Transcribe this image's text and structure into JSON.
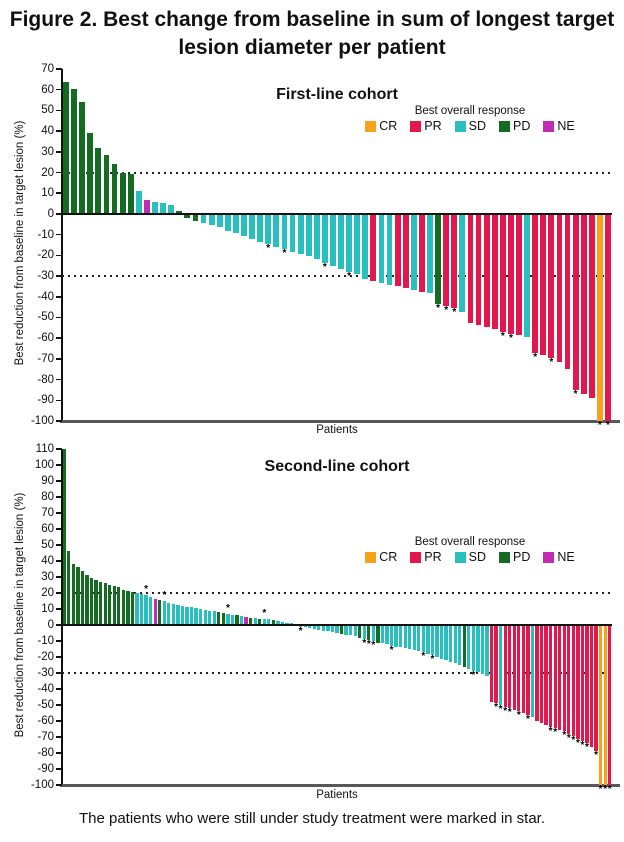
{
  "title": "Figure 2. Best change from baseline in sum of longest target lesion diameter per patient",
  "footnote": "The patients who were still under study treatment were marked in star.",
  "colors": {
    "CR": "#f9a11b",
    "PR": "#e2174d",
    "SD": "#2abfbf",
    "PD": "#156b21",
    "NE": "#c22bb4",
    "axis": "#111111",
    "baseline_axis": "#58585a"
  },
  "legend": {
    "title": "Best overall response",
    "entries": [
      "CR",
      "PR",
      "SD",
      "PD",
      "NE"
    ]
  },
  "bars_format": [
    "value_percent",
    "best_overall_response",
    "still_on_treatment_star"
  ],
  "chart_data": [
    {
      "type": "bar",
      "title": "First-line cohort",
      "xlabel": "Patients",
      "ylabel": "Best reduction from baseline in target lesion (%)",
      "ylim": [
        -100,
        70
      ],
      "ytick_step": 10,
      "grid": false,
      "legend_position": "upper right",
      "reference_lines": [
        20,
        -30
      ],
      "bars": [
        [
          63.5,
          "PD",
          0
        ],
        [
          60.5,
          "PD",
          0
        ],
        [
          54,
          "PD",
          0
        ],
        [
          39,
          "PD",
          0
        ],
        [
          32,
          "PD",
          0
        ],
        [
          28.5,
          "PD",
          0
        ],
        [
          24,
          "PD",
          0
        ],
        [
          20,
          "PD",
          0
        ],
        [
          19.5,
          "PD",
          0
        ],
        [
          11,
          "SD",
          0
        ],
        [
          6.5,
          "NE",
          0
        ],
        [
          6,
          "SD",
          0
        ],
        [
          5.5,
          "SD",
          0
        ],
        [
          4.5,
          "SD",
          0
        ],
        [
          1.5,
          "PD",
          0
        ],
        [
          -2,
          "PD",
          0
        ],
        [
          -3.5,
          "PD",
          0
        ],
        [
          -4.5,
          "SD",
          0
        ],
        [
          -5.5,
          "SD",
          0
        ],
        [
          -6.5,
          "SD",
          0
        ],
        [
          -8,
          "SD",
          0
        ],
        [
          -9,
          "SD",
          0
        ],
        [
          -10.5,
          "SD",
          0
        ],
        [
          -12,
          "SD",
          0
        ],
        [
          -13.5,
          "SD",
          0
        ],
        [
          -14.5,
          "SD",
          1
        ],
        [
          -16,
          "SD",
          0
        ],
        [
          -17,
          "SD",
          1
        ],
        [
          -18.5,
          "SD",
          0
        ],
        [
          -19.5,
          "SD",
          0
        ],
        [
          -20.5,
          "SD",
          0
        ],
        [
          -22,
          "SD",
          0
        ],
        [
          -23.5,
          "SD",
          1
        ],
        [
          -25,
          "SD",
          0
        ],
        [
          -26.5,
          "SD",
          0
        ],
        [
          -28,
          "SD",
          1
        ],
        [
          -29,
          "SD",
          0
        ],
        [
          -31.5,
          "SD",
          0
        ],
        [
          -32.5,
          "PR",
          0
        ],
        [
          -33.5,
          "SD",
          0
        ],
        [
          -34.5,
          "SD",
          0
        ],
        [
          -35,
          "PR",
          0
        ],
        [
          -36,
          "PR",
          0
        ],
        [
          -36.5,
          "SD",
          0
        ],
        [
          -37.5,
          "PR",
          0
        ],
        [
          -38,
          "SD",
          0
        ],
        [
          -43.5,
          "PD",
          1
        ],
        [
          -44.5,
          "PR",
          1
        ],
        [
          -45.5,
          "PR",
          1
        ],
        [
          -47.5,
          "SD",
          0
        ],
        [
          -52.5,
          "PR",
          0
        ],
        [
          -53.5,
          "PR",
          0
        ],
        [
          -54.5,
          "PR",
          0
        ],
        [
          -55.5,
          "PR",
          0
        ],
        [
          -57,
          "PR",
          1
        ],
        [
          -58,
          "PR",
          1
        ],
        [
          -58.5,
          "PR",
          0
        ],
        [
          -59.5,
          "SD",
          0
        ],
        [
          -67,
          "PR",
          1
        ],
        [
          -68,
          "PR",
          0
        ],
        [
          -69.5,
          "PR",
          1
        ],
        [
          -71.5,
          "PR",
          0
        ],
        [
          -75,
          "PR",
          0
        ],
        [
          -85,
          "PR",
          1
        ],
        [
          -87,
          "PR",
          0
        ],
        [
          -89,
          "PR",
          0
        ],
        [
          -100,
          "CR",
          1
        ],
        [
          -100,
          "PR",
          1
        ]
      ]
    },
    {
      "type": "bar",
      "title": "Second-line cohort",
      "xlabel": "Patients",
      "ylabel": "Best reduction from baseline in target lesion (%)",
      "ylim": [
        -100,
        110
      ],
      "ytick_step": 10,
      "grid": false,
      "legend_position": "upper right",
      "reference_lines": [
        20,
        -30
      ],
      "bars": [
        [
          110,
          "PD",
          0
        ],
        [
          46,
          "PD",
          0
        ],
        [
          38,
          "PD",
          0
        ],
        [
          36,
          "PD",
          0
        ],
        [
          34,
          "PD",
          0
        ],
        [
          31,
          "PD",
          0
        ],
        [
          29.5,
          "PD",
          0
        ],
        [
          28,
          "PD",
          0
        ],
        [
          27,
          "PD",
          0
        ],
        [
          26,
          "PD",
          0
        ],
        [
          25,
          "PD",
          0
        ],
        [
          24.5,
          "PD",
          0
        ],
        [
          23.5,
          "PD",
          0
        ],
        [
          22,
          "PD",
          0
        ],
        [
          21,
          "PD",
          0
        ],
        [
          20.5,
          "PD",
          0
        ],
        [
          20,
          "SD",
          0
        ],
        [
          19.5,
          "SD",
          0
        ],
        [
          18.5,
          "SD",
          1
        ],
        [
          17.5,
          "SD",
          0
        ],
        [
          16.5,
          "NE",
          0
        ],
        [
          15.5,
          "PD",
          0
        ],
        [
          15,
          "SD",
          1
        ],
        [
          14,
          "SD",
          0
        ],
        [
          13,
          "SD",
          0
        ],
        [
          12.5,
          "SD",
          0
        ],
        [
          12,
          "SD",
          0
        ],
        [
          11.5,
          "SD",
          0
        ],
        [
          11,
          "SD",
          0
        ],
        [
          10.5,
          "SD",
          0
        ],
        [
          10,
          "SD",
          0
        ],
        [
          9.5,
          "SD",
          0
        ],
        [
          9,
          "SD",
          0
        ],
        [
          8.5,
          "SD",
          0
        ],
        [
          8,
          "PD",
          0
        ],
        [
          7.5,
          "PD",
          0
        ],
        [
          7,
          "SD",
          1
        ],
        [
          6.5,
          "SD",
          0
        ],
        [
          6,
          "PD",
          0
        ],
        [
          5.5,
          "SD",
          0
        ],
        [
          5,
          "NE",
          0
        ],
        [
          4.5,
          "PD",
          0
        ],
        [
          4.5,
          "SD",
          0
        ],
        [
          4,
          "PD",
          0
        ],
        [
          4,
          "SD",
          1
        ],
        [
          3.5,
          "SD",
          0
        ],
        [
          3,
          "PD",
          0
        ],
        [
          2.5,
          "SD",
          0
        ],
        [
          2,
          "SD",
          0
        ],
        [
          1.5,
          "SD",
          0
        ],
        [
          1,
          "SD",
          0
        ],
        [
          0.5,
          "SD",
          0
        ],
        [
          -1,
          "SD",
          1
        ],
        [
          -1.5,
          "SD",
          0
        ],
        [
          -2,
          "SD",
          0
        ],
        [
          -2.5,
          "SD",
          0
        ],
        [
          -3,
          "SD",
          0
        ],
        [
          -3.5,
          "SD",
          0
        ],
        [
          -4,
          "SD",
          0
        ],
        [
          -4.5,
          "SD",
          0
        ],
        [
          -5,
          "SD",
          0
        ],
        [
          -5.5,
          "PD",
          0
        ],
        [
          -6,
          "SD",
          0
        ],
        [
          -6.5,
          "SD",
          0
        ],
        [
          -7,
          "SD",
          0
        ],
        [
          -8,
          "PD",
          0
        ],
        [
          -8.5,
          "SD",
          1
        ],
        [
          -9.5,
          "PD",
          1
        ],
        [
          -10,
          "SD",
          1
        ],
        [
          -11,
          "PD",
          0
        ],
        [
          -11.5,
          "SD",
          0
        ],
        [
          -12,
          "SD",
          0
        ],
        [
          -13,
          "SD",
          1
        ],
        [
          -13.5,
          "SD",
          0
        ],
        [
          -14,
          "SD",
          0
        ],
        [
          -14.5,
          "SD",
          0
        ],
        [
          -15,
          "SD",
          0
        ],
        [
          -15.5,
          "SD",
          0
        ],
        [
          -16,
          "SD",
          0
        ],
        [
          -17,
          "SD",
          1
        ],
        [
          -18,
          "SD",
          0
        ],
        [
          -19,
          "SD",
          1
        ],
        [
          -20,
          "SD",
          0
        ],
        [
          -21,
          "SD",
          0
        ],
        [
          -22,
          "SD",
          0
        ],
        [
          -23,
          "SD",
          0
        ],
        [
          -24,
          "SD",
          0
        ],
        [
          -25,
          "SD",
          0
        ],
        [
          -26.5,
          "PD",
          0
        ],
        [
          -27.5,
          "SD",
          0
        ],
        [
          -28.5,
          "SD",
          1
        ],
        [
          -29.5,
          "SD",
          0
        ],
        [
          -30.5,
          "SD",
          0
        ],
        [
          -32,
          "SD",
          0
        ],
        [
          -48,
          "PR",
          0
        ],
        [
          -49,
          "PR",
          1
        ],
        [
          -50,
          "SD",
          1
        ],
        [
          -51,
          "PR",
          1
        ],
        [
          -52,
          "PR",
          1
        ],
        [
          -53,
          "PR",
          0
        ],
        [
          -54,
          "PR",
          1
        ],
        [
          -55,
          "PR",
          0
        ],
        [
          -56,
          "PR",
          1
        ],
        [
          -57.5,
          "SD",
          0
        ],
        [
          -60,
          "PR",
          0
        ],
        [
          -61.5,
          "PR",
          0
        ],
        [
          -62.5,
          "PR",
          0
        ],
        [
          -63.5,
          "PR",
          1
        ],
        [
          -64.5,
          "PR",
          1
        ],
        [
          -65.5,
          "PR",
          0
        ],
        [
          -66.5,
          "PR",
          1
        ],
        [
          -68,
          "PR",
          1
        ],
        [
          -69.5,
          "PR",
          1
        ],
        [
          -71,
          "PR",
          1
        ],
        [
          -72.5,
          "PR",
          1
        ],
        [
          -74,
          "PR",
          1
        ],
        [
          -76,
          "PR",
          0
        ],
        [
          -79,
          "PR",
          1
        ],
        [
          -100,
          "CR",
          1
        ],
        [
          -100,
          "CR",
          1
        ],
        [
          -100,
          "PR",
          1
        ]
      ]
    }
  ]
}
